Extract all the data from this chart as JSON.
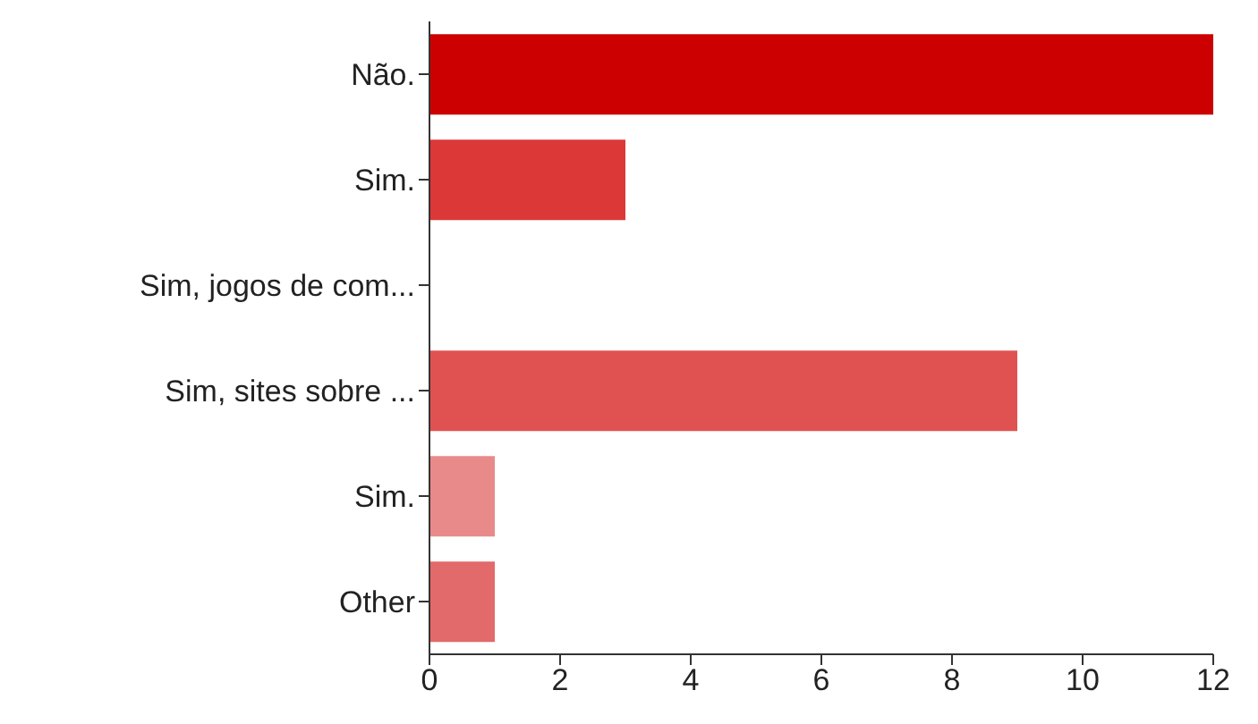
{
  "chart_data": {
    "type": "bar",
    "orientation": "horizontal",
    "categories": [
      "Não.",
      "Sim.",
      "Sim, jogos de com...",
      "Sim, sites sobre ...",
      "Sim.",
      "Other"
    ],
    "values": [
      12,
      3,
      0,
      9,
      1,
      1
    ],
    "colors": [
      "#cc0000",
      "#dc3838",
      "#d42a2a",
      "#e05252",
      "#e88a8a",
      "#e26a6a"
    ],
    "xlim": [
      0,
      12
    ],
    "xticks": [
      0,
      2,
      4,
      6,
      8,
      10,
      12
    ],
    "grid": false
  }
}
